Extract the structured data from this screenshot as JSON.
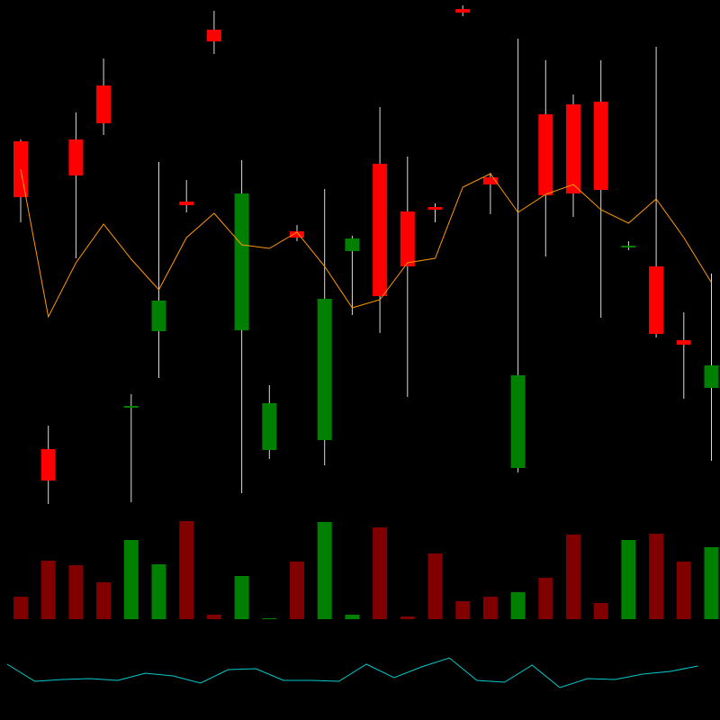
{
  "chart_data": [
    {
      "type": "candlestick",
      "up_color": "#ff0000",
      "down_color": "#008000",
      "ylim": [
        0,
        560
      ],
      "open": [
        341,
        26,
        365,
        423,
        109,
        226,
        332,
        514,
        345,
        112,
        296,
        228,
        295,
        231,
        264,
        327,
        546,
        355,
        143,
        343,
        345,
        349,
        287,
        189,
        177,
        154
      ],
      "high": [
        405,
        87,
        435,
        495,
        122,
        380,
        360,
        548,
        382,
        132,
        310,
        350,
        298,
        441,
        386,
        334,
        554,
        368,
        517,
        493,
        455,
        493,
        292,
        508,
        213,
        256
      ],
      "low": [
        313,
        0,
        273,
        410,
        2,
        140,
        324,
        500,
        12,
        50,
        292,
        43,
        210,
        190,
        119,
        313,
        542,
        322,
        35,
        275,
        319,
        207,
        282,
        185,
        117,
        48
      ],
      "close": [
        403,
        61,
        405,
        465,
        107,
        192,
        336,
        527,
        193,
        60,
        303,
        71,
        281,
        378,
        325,
        330,
        550,
        363,
        40,
        433,
        444,
        447,
        285,
        264,
        182,
        129
      ],
      "series": [
        {
          "color": "#ff9900",
          "values": [
            372,
            208,
            268,
            311,
            272,
            238,
            296,
            323,
            288,
            284,
            302,
            264,
            218,
            227,
            268,
            273,
            352,
            367,
            324,
            344,
            355,
            327,
            312,
            339,
            296,
            246
          ]
        }
      ]
    },
    {
      "type": "bar",
      "up_color": "#800000",
      "down_color": "#008000",
      "ylim": [
        0,
        110
      ],
      "values": [
        25,
        65,
        60,
        41,
        88,
        61,
        109,
        5,
        48,
        1,
        64,
        108,
        5,
        102,
        3,
        73,
        20,
        25,
        30,
        46,
        94,
        18,
        88,
        95,
        64,
        80
      ]
    },
    {
      "type": "line",
      "color": "#00cccc",
      "ylim": [
        0,
        80
      ],
      "values": [
        42,
        23,
        25,
        26,
        24,
        32,
        29,
        21,
        36,
        37,
        24,
        24,
        23,
        42,
        27,
        39,
        49,
        24,
        22,
        41,
        16,
        26,
        25,
        31,
        34,
        40
      ]
    }
  ]
}
